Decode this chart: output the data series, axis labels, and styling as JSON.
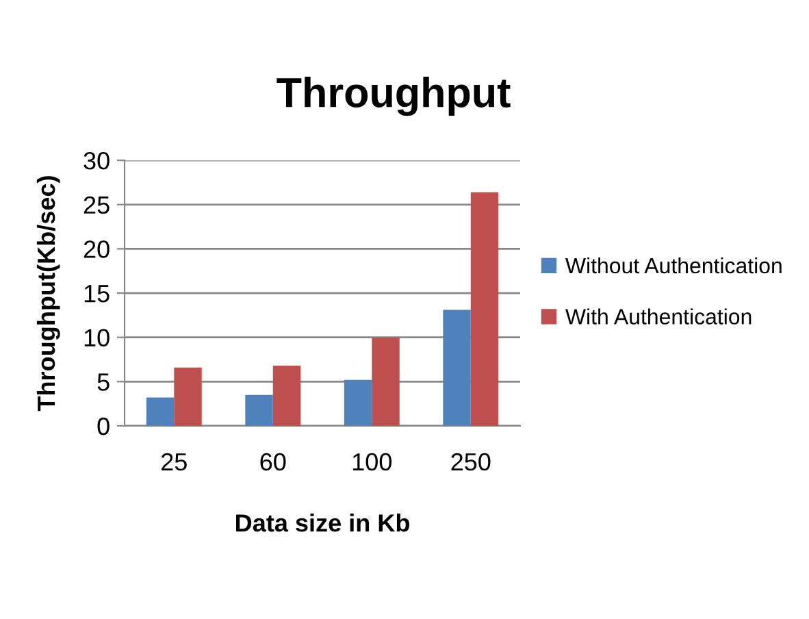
{
  "chart_data": {
    "type": "bar",
    "title": "Throughput",
    "xlabel": "Data size in Kb",
    "ylabel": "Throughput(Kb/sec)",
    "categories": [
      "25",
      "60",
      "100",
      "250"
    ],
    "series": [
      {
        "name": "Without Authentication",
        "color": "#4f81bd",
        "values": [
          3.2,
          3.5,
          5.2,
          13.1
        ]
      },
      {
        "name": "With Authentication",
        "color": "#c0504d",
        "values": [
          6.6,
          6.8,
          10,
          26.4
        ]
      }
    ],
    "ylim": [
      0,
      30
    ],
    "yticks": [
      0,
      5,
      10,
      15,
      20,
      25,
      30
    ],
    "grid": "y",
    "legend": "right"
  }
}
